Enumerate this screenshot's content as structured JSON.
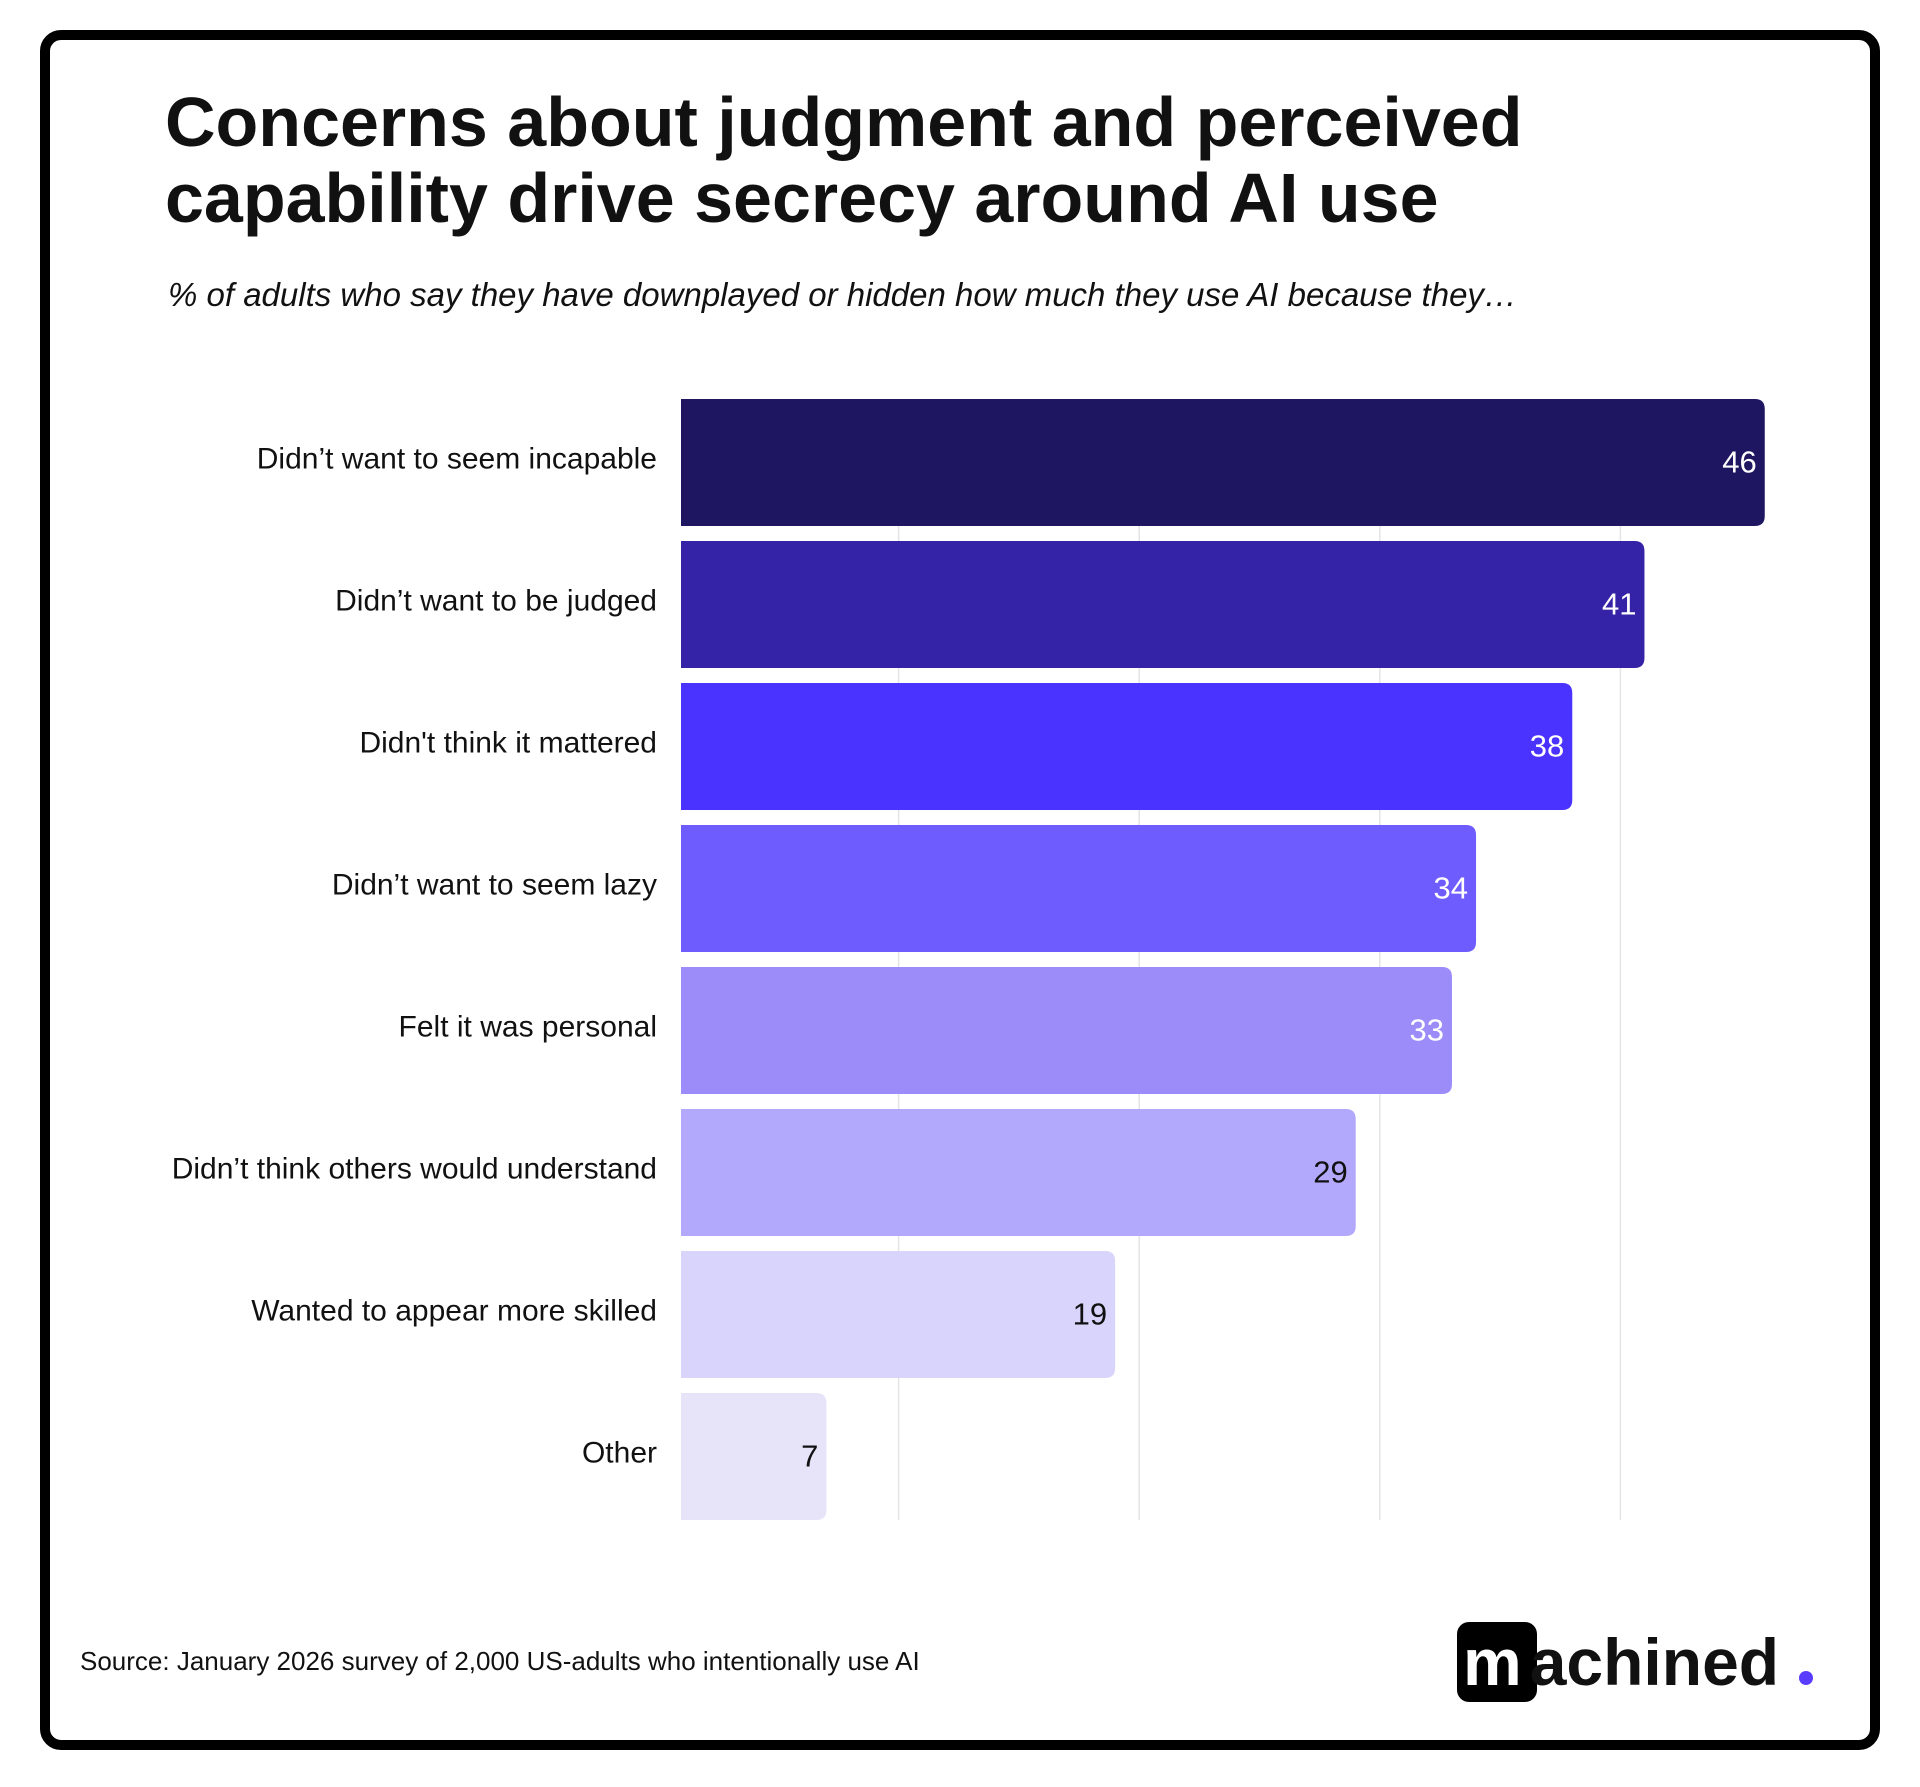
{
  "chart_data": {
    "type": "bar",
    "orientation": "horizontal",
    "title": [
      "Concerns about judgment and perceived",
      "capability drive secrecy around AI use"
    ],
    "subtitle": "% of adults who say they have downplayed or hidden how much they use AI because they…",
    "categories": [
      "Didn’t want to seem incapable",
      "Didn’t want to be judged",
      "Didn't think it mattered",
      "Didn’t want to seem lazy",
      "Felt it was personal",
      "Didn’t think others would understand",
      "Wanted to appear more skilled",
      "Other"
    ],
    "values": [
      46,
      41,
      38,
      34,
      33,
      29,
      19,
      7
    ],
    "colors": [
      "#1e1660",
      "#3423a6",
      "#4b33ff",
      "#6f5cff",
      "#9b8cfa",
      "#b3a9fc",
      "#d9d4fc",
      "#e7e4fa"
    ],
    "xlim": [
      0,
      48
    ],
    "xticks": [
      10,
      20,
      30,
      40
    ],
    "grid": true,
    "source": "Source:  January 2026 survey of 2,000 US-adults who intentionally use AI",
    "logo": "machined"
  }
}
